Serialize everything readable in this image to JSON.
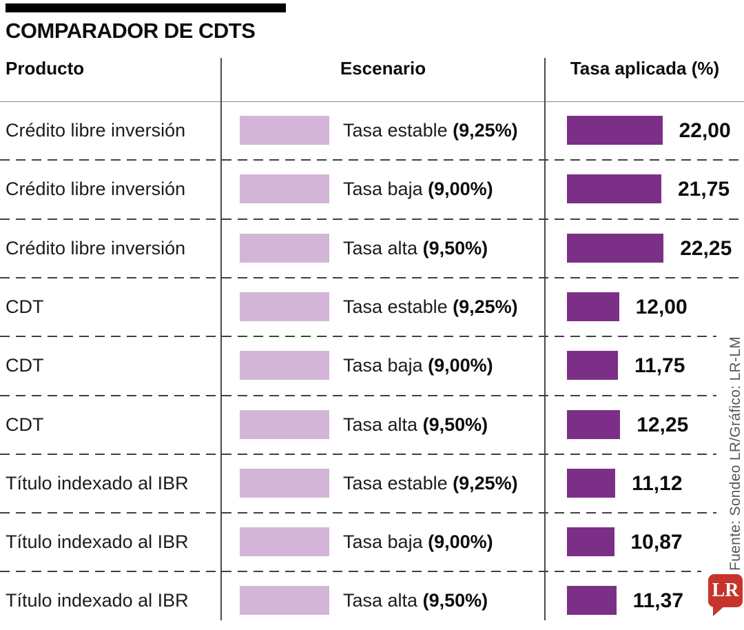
{
  "title": "COMPARADOR DE CDTS",
  "header": {
    "producto": "Producto",
    "escenario": "Escenario",
    "tasa": "Tasa aplicada (%)"
  },
  "source_credit": "Fuente: Sondeo LR/Gráfico: LR-LM",
  "logo_text": "LR",
  "colors": {
    "light_bar": "#d3b5d8",
    "dark_bar": "#7c2f87",
    "logo_red": "#c6342c",
    "dash": "#3f3f3f"
  },
  "chart_data": {
    "type": "bar",
    "orientation": "horizontal",
    "title": "COMPARADOR DE CDTS",
    "columns": [
      "Producto",
      "Escenario",
      "Tasa aplicada (%)"
    ],
    "value_axis": {
      "unit": "%",
      "min": 0,
      "max": 22.25
    },
    "legend_swatch_note": "light purple swatch shown per scenario, equal width for all rows",
    "rows": [
      {
        "producto": "Crédito libre inversión",
        "escenario": "Tasa estable",
        "escenario_tasa": "(9,25%)",
        "valor": 22.0,
        "valor_label": "22,00"
      },
      {
        "producto": "Crédito libre inversión",
        "escenario": "Tasa baja",
        "escenario_tasa": "(9,00%)",
        "valor": 21.75,
        "valor_label": "21,75"
      },
      {
        "producto": "Crédito libre inversión",
        "escenario": "Tasa alta",
        "escenario_tasa": "(9,50%)",
        "valor": 22.25,
        "valor_label": "22,25"
      },
      {
        "producto": "CDT",
        "escenario": "Tasa estable",
        "escenario_tasa": "(9,25%)",
        "valor": 12.0,
        "valor_label": "12,00"
      },
      {
        "producto": "CDT",
        "escenario": "Tasa baja",
        "escenario_tasa": "(9,00%)",
        "valor": 11.75,
        "valor_label": "11,75"
      },
      {
        "producto": "CDT",
        "escenario": "Tasa alta",
        "escenario_tasa": "(9,50%)",
        "valor": 12.25,
        "valor_label": "12,25"
      },
      {
        "producto": "Título indexado al IBR",
        "escenario": "Tasa estable",
        "escenario_tasa": "(9,25%)",
        "valor": 11.12,
        "valor_label": "11,12"
      },
      {
        "producto": "Título indexado al IBR",
        "escenario": "Tasa baja",
        "escenario_tasa": "(9,00%)",
        "valor": 10.87,
        "valor_label": "10,87"
      },
      {
        "producto": "Título indexado al IBR",
        "escenario": "Tasa alta",
        "escenario_tasa": "(9,50%)",
        "valor": 11.37,
        "valor_label": "11,37"
      }
    ]
  }
}
